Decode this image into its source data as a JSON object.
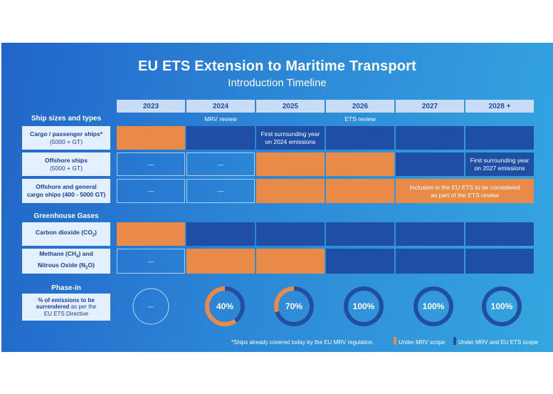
{
  "title": "EU ETS Extension to Maritime Transport",
  "subtitle": "Introduction Timeline",
  "years": [
    "2023",
    "2024",
    "2025",
    "2026",
    "2027",
    "2028 +"
  ],
  "reviews": {
    "mrv": "MRV review",
    "ets": "ETS review"
  },
  "sections": {
    "ships": "Ship sizes and types",
    "gases": "Greenhouse Gases"
  },
  "rows": {
    "cargo": {
      "line1": "Cargo / passenger ships*",
      "line2": "(5000 + GT)"
    },
    "offshore": {
      "line1": "Offshore ships",
      "line2": "(5000 + GT)"
    },
    "general": {
      "line1": "Offshore and general",
      "line2": "cargo ships (400 - 5000 GT)"
    },
    "co2": {
      "pre": "Carbon dioxide (CO",
      "sub": "2",
      "post": ")"
    },
    "methane": {
      "l1pre": "Methane (CH",
      "l1sub": "4",
      "l1post": ") and",
      "l2pre": "Nitrous Oxide (N",
      "l2sub": "2",
      "l2post": "O)"
    }
  },
  "notes": {
    "cargo_2025": [
      "First surrounding year",
      "on 2024 emissions"
    ],
    "offshore_2028": [
      "First surrounding year",
      "on 2027 emissions"
    ],
    "general_2027": [
      "Inclusion in the EU ETS to be considered",
      "as part of the ETS review"
    ]
  },
  "dash": "—",
  "phase_in": {
    "label": "Phase-in",
    "desc_bold1": "% of emissions to be",
    "desc_bold2": "surrendered",
    "desc_rest": " as per the",
    "desc_line3": "EU ETS Directive",
    "values": [
      {
        "year": "2023",
        "percent": null,
        "text": "—"
      },
      {
        "year": "2024",
        "percent": 40,
        "text": "40%"
      },
      {
        "year": "2025",
        "percent": 70,
        "text": "70%"
      },
      {
        "year": "2026",
        "percent": 100,
        "text": "100%"
      },
      {
        "year": "2027",
        "percent": 100,
        "text": "100%"
      },
      {
        "year": "2028 +",
        "percent": 100,
        "text": "100%"
      }
    ]
  },
  "footnote": "*Ships already covered today by the EU MRV regulation",
  "legend": [
    {
      "label": "Under MRV scope",
      "color": "#e98a46"
    },
    {
      "label": "Under MRV and EU ETS scope",
      "color": "#1f4fa5"
    }
  ],
  "colors": {
    "orange": "#e98a46",
    "navy": "#1f4fa5",
    "label_bg": "#e4efff",
    "panel": "#2c86d6"
  }
}
